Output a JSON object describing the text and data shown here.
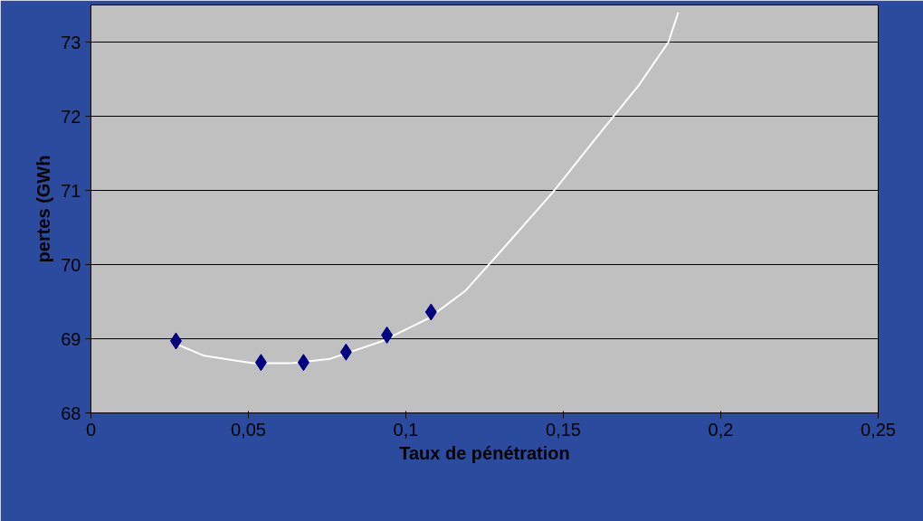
{
  "chart_data": {
    "type": "scatter",
    "xlabel": "Taux de pénétration",
    "ylabel": "pertes (GWh",
    "xlim": [
      0,
      0.25
    ],
    "ylim": [
      68,
      73.5
    ],
    "xticks": [
      {
        "value": 0,
        "label": "0"
      },
      {
        "value": 0.05,
        "label": "0,05"
      },
      {
        "value": 0.1,
        "label": "0,1"
      },
      {
        "value": 0.15,
        "label": "0,15"
      },
      {
        "value": 0.2,
        "label": "0,2"
      },
      {
        "value": 0.25,
        "label": "0,25"
      }
    ],
    "yticks": [
      68,
      69,
      70,
      71,
      72,
      73
    ],
    "grid": "y",
    "marker": "diamond",
    "series": [
      {
        "type": "line",
        "color": "#ffffff",
        "marker": "none",
        "x": [
          0.027,
          0.036,
          0.0515,
          0.0638,
          0.076,
          0.092,
          0.107,
          0.119,
          0.131,
          0.1466,
          0.162,
          0.174,
          0.1834,
          0.1865
        ],
        "values": [
          68.93,
          68.77,
          68.67,
          68.67,
          68.73,
          68.96,
          69.27,
          69.65,
          70.22,
          70.97,
          71.79,
          72.42,
          73.0,
          73.4
        ]
      },
      {
        "color": "#000080",
        "x": [
          0.027,
          0.054,
          0.0675,
          0.081,
          0.094,
          0.108
        ],
        "values": [
          68.97,
          68.68,
          68.68,
          68.82,
          69.05,
          69.36
        ]
      }
    ]
  }
}
